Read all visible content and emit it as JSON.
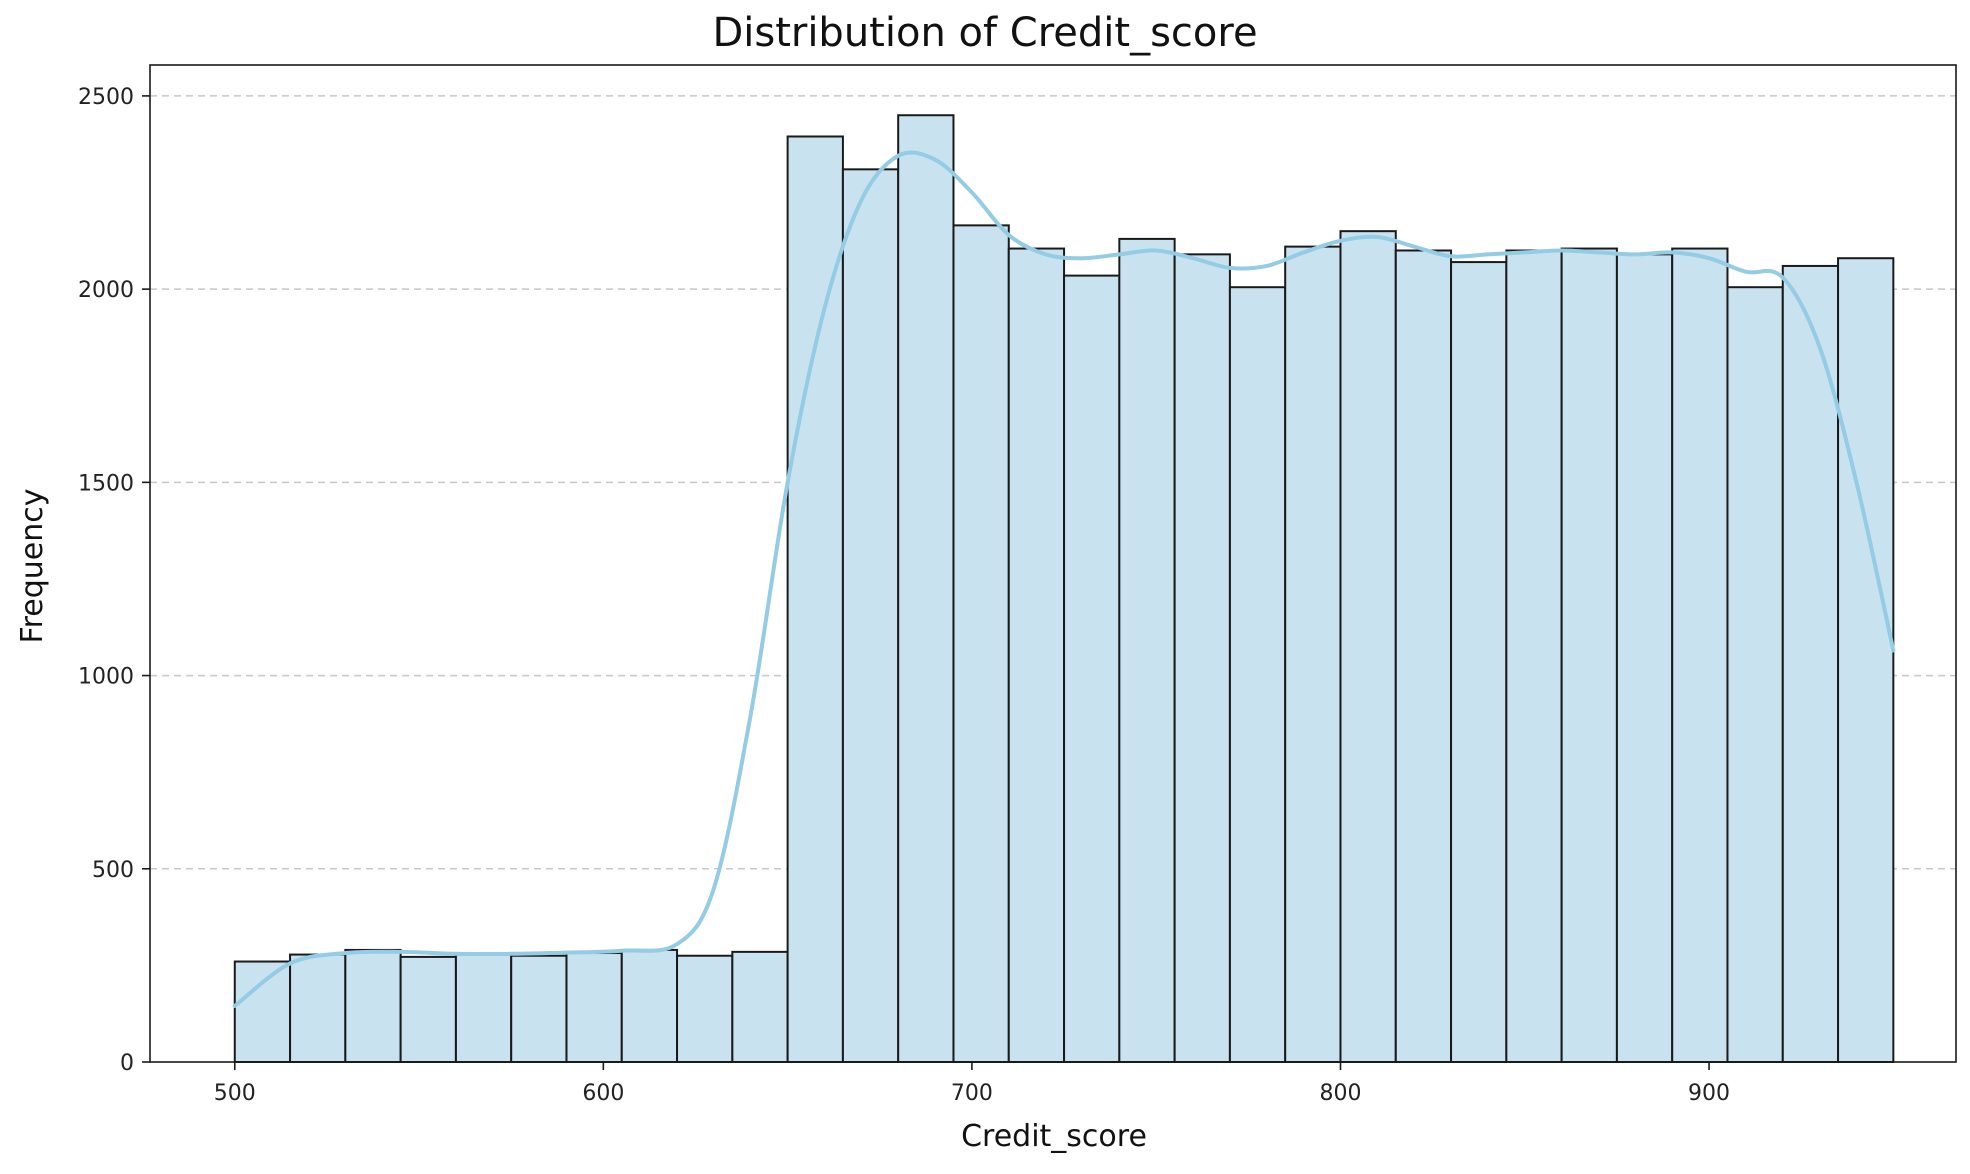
{
  "chart_data": {
    "type": "bar",
    "title": "Distribution of Credit_score",
    "xlabel": "Credit_score",
    "ylabel": "Frequency",
    "xlim": [
      477,
      967
    ],
    "ylim": [
      0,
      2580
    ],
    "xticks": [
      500,
      600,
      700,
      800,
      900
    ],
    "yticks": [
      0,
      500,
      1000,
      1500,
      2000,
      2500
    ],
    "grid": "y-dashed",
    "bin_edges": [
      500,
      515,
      530,
      545,
      560,
      575,
      590,
      605,
      620,
      635,
      650,
      665,
      680,
      695,
      710,
      725,
      740,
      755,
      770,
      785,
      800,
      815,
      830,
      845,
      860,
      875,
      890,
      905,
      920,
      935,
      950
    ],
    "values": [
      260,
      278,
      290,
      272,
      278,
      275,
      282,
      290,
      275,
      285,
      2395,
      2310,
      2450,
      2165,
      2105,
      2035,
      2130,
      2090,
      2005,
      2110,
      2150,
      2100,
      2070,
      2100,
      2105,
      2090,
      2105,
      2005,
      2060,
      2080
    ],
    "kde": {
      "x": [
        500,
        515,
        530,
        545,
        560,
        575,
        590,
        605,
        620,
        630,
        640,
        650,
        660,
        670,
        680,
        690,
        700,
        710,
        720,
        730,
        740,
        750,
        760,
        770,
        780,
        790,
        800,
        810,
        820,
        830,
        840,
        850,
        860,
        870,
        880,
        890,
        900,
        910,
        920,
        930,
        940,
        950
      ],
      "y": [
        145,
        255,
        282,
        285,
        280,
        280,
        283,
        288,
        305,
        450,
        900,
        1500,
        1950,
        2230,
        2345,
        2335,
        2250,
        2140,
        2090,
        2080,
        2090,
        2100,
        2080,
        2055,
        2060,
        2095,
        2125,
        2135,
        2110,
        2085,
        2090,
        2095,
        2100,
        2095,
        2090,
        2095,
        2080,
        2045,
        2030,
        1850,
        1500,
        1065
      ]
    },
    "colors": {
      "bar_fill": "#c8e3ef",
      "bar_edge": "#1a1a1a",
      "kde_line": "#94cbe5",
      "grid": "#c8c8c8"
    }
  }
}
